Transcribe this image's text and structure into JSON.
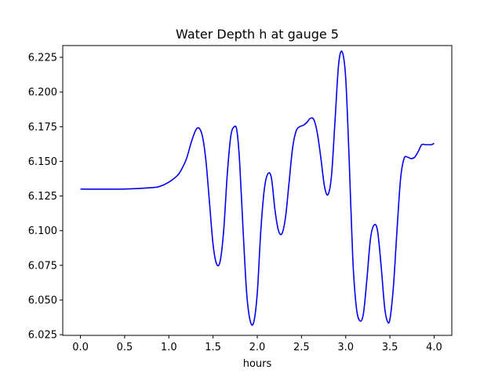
{
  "chart_data": {
    "type": "line",
    "title": "Water Depth h at gauge 5",
    "xlabel": "hours",
    "ylabel": "",
    "xlim": [
      -0.2,
      4.2
    ],
    "ylim": [
      6.0245,
      6.2335
    ],
    "xticks": [
      0.0,
      0.5,
      1.0,
      1.5,
      2.0,
      2.5,
      3.0,
      3.5,
      4.0
    ],
    "xtick_labels": [
      "0.0",
      "0.5",
      "1.0",
      "1.5",
      "2.0",
      "2.5",
      "3.0",
      "3.5",
      "4.0"
    ],
    "yticks": [
      6.025,
      6.05,
      6.075,
      6.1,
      6.125,
      6.15,
      6.175,
      6.2,
      6.225
    ],
    "ytick_labels": [
      "6.025",
      "6.050",
      "6.075",
      "6.100",
      "6.125",
      "6.150",
      "6.175",
      "6.200",
      "6.225"
    ],
    "grid": false,
    "legend": "none",
    "color": "#0000ee",
    "series": [
      {
        "x": [
          0.0,
          0.5,
          0.8,
          0.9,
          1.0,
          1.1,
          1.15,
          1.2,
          1.25,
          1.3,
          1.34,
          1.38,
          1.42,
          1.46,
          1.5,
          1.54,
          1.58,
          1.62,
          1.66,
          1.7,
          1.74,
          1.77,
          1.8,
          1.84,
          1.88,
          1.92,
          1.96,
          2.0,
          2.04,
          2.08,
          2.12,
          2.16,
          2.2,
          2.24,
          2.28,
          2.32,
          2.36,
          2.4,
          2.44,
          2.48,
          2.52,
          2.56,
          2.6,
          2.64,
          2.68,
          2.72,
          2.76,
          2.8,
          2.84,
          2.88,
          2.92,
          2.96,
          3.0,
          3.04,
          3.08,
          3.12,
          3.16,
          3.2,
          3.24,
          3.28,
          3.32,
          3.36,
          3.4,
          3.44,
          3.47,
          3.5,
          3.54,
          3.58,
          3.62,
          3.66,
          3.7,
          3.74,
          3.78,
          3.82,
          3.86,
          3.9,
          3.94,
          3.97,
          4.0
        ],
        "y": [
          6.13,
          6.13,
          6.131,
          6.132,
          6.135,
          6.14,
          6.145,
          6.152,
          6.163,
          6.172,
          6.174,
          6.168,
          6.15,
          6.12,
          6.09,
          6.076,
          6.078,
          6.1,
          6.14,
          6.168,
          6.175,
          6.172,
          6.15,
          6.1,
          6.055,
          6.035,
          6.034,
          6.055,
          6.1,
          6.13,
          6.141,
          6.138,
          6.115,
          6.1,
          6.098,
          6.11,
          6.135,
          6.16,
          6.172,
          6.175,
          6.176,
          6.178,
          6.181,
          6.18,
          6.17,
          6.152,
          6.132,
          6.126,
          6.14,
          6.18,
          6.22,
          6.229,
          6.21,
          6.15,
          6.08,
          6.045,
          6.035,
          6.04,
          6.065,
          6.094,
          6.104,
          6.1,
          6.075,
          6.045,
          6.035,
          6.036,
          6.06,
          6.1,
          6.137,
          6.152,
          6.153,
          6.152,
          6.153,
          6.157,
          6.162,
          6.162,
          6.162,
          6.162,
          6.163
        ]
      }
    ]
  }
}
